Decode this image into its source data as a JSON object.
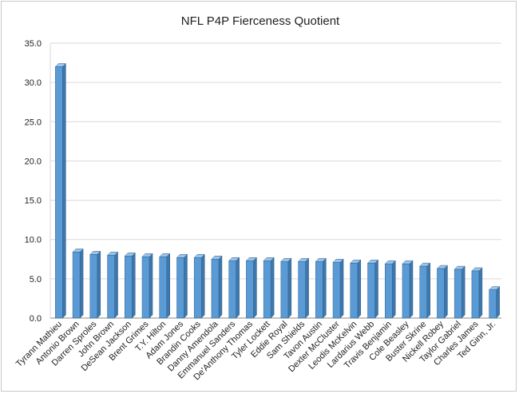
{
  "chart_data": {
    "type": "bar",
    "title": "NFL P4P Fierceness Quotient",
    "xlabel": "",
    "ylabel": "",
    "ylim": [
      0,
      35
    ],
    "ytick_step": 5,
    "ytick_labels": [
      "0.0",
      "5.0",
      "10.0",
      "15.0",
      "20.0",
      "25.0",
      "30.0",
      "35.0"
    ],
    "grid": true,
    "legend": "none",
    "bar_style": "3d",
    "categories": [
      "Tyrann Mathieu",
      "Antonio Brown",
      "Darren Sproles",
      "John Brown",
      "DeSean Jackson",
      "Brent Grimes",
      "T.Y. Hilton",
      "Adam Jones",
      "Brandin Cooks",
      "Danny Amendola",
      "Emmanuel Sanders",
      "De'Anthony Thomas",
      "Tyler Lockett",
      "Eddie Royal",
      "Sam Shields",
      "Tavon Austin",
      "Dexter McCluster",
      "Leodis McKelvin",
      "Lardarius Webb",
      "Travis Benjamin",
      "Cole Beasley",
      "Buster Skrine",
      "Nickell Robey",
      "Taylor Gabriel",
      "Charles James",
      "Ted Ginn, Jr."
    ],
    "values": [
      32.0,
      8.4,
      8.1,
      8.0,
      7.9,
      7.8,
      7.8,
      7.7,
      7.7,
      7.5,
      7.3,
      7.3,
      7.3,
      7.2,
      7.2,
      7.2,
      7.1,
      7.0,
      7.0,
      6.9,
      6.9,
      6.6,
      6.3,
      6.2,
      6.0,
      3.6
    ],
    "colors": {
      "bar_front": "#5b9bd5",
      "bar_side": "#3f77aa",
      "bar_top": "#9cc3e9",
      "bar_edge": "#2f5f8f",
      "grid": "#d9d9d9",
      "axis": "#888888"
    }
  }
}
